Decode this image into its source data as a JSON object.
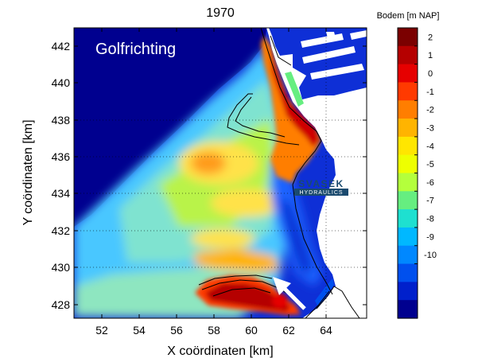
{
  "figure": {
    "title": "1970",
    "overlay_label": "Golfrichting",
    "xlabel": "X coördinaten [km]",
    "ylabel": "Y coördinaten [km]",
    "x_ticks": [
      "52",
      "54",
      "56",
      "58",
      "60",
      "62",
      "64"
    ],
    "y_ticks": [
      "428",
      "430",
      "432",
      "434",
      "436",
      "438",
      "440",
      "442"
    ]
  },
  "colorbar": {
    "title": "Bodem [m NAP]",
    "labels": [
      "2",
      "1",
      "0",
      "-1",
      "-2",
      "-3",
      "-4",
      "-5",
      "-6",
      "-7",
      "-8",
      "-9",
      "-10"
    ],
    "colors": [
      "#7b0000",
      "#b50000",
      "#e60000",
      "#ff3a00",
      "#ff7e00",
      "#ffb400",
      "#ffe600",
      "#eeff00",
      "#b4ff3c",
      "#66ee80",
      "#1ee0d0",
      "#00b8ff",
      "#0088ff",
      "#0050ee",
      "#0020cc",
      "#00008f"
    ]
  },
  "logo": {
    "name": "SVASEK",
    "sub": "HYDRAULICS"
  },
  "map_colors": {
    "deep": "#00008f",
    "medium_deep": "#1f63ff",
    "mid": "#49c7ff",
    "shallow": "#b9f34a",
    "sand": "#ffe24a",
    "bar": "#ff9b1a",
    "high": "#cf0000",
    "land": "#ffffff"
  },
  "axes_range": {
    "x": [
      50.3,
      66.0
    ],
    "y": [
      427.4,
      443.2
    ]
  }
}
